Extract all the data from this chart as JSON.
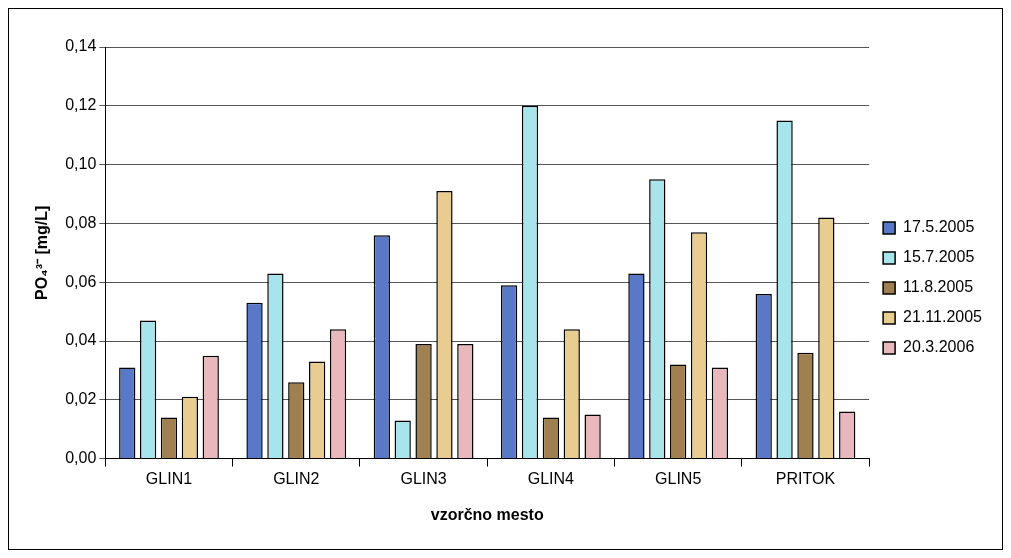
{
  "chart_data": {
    "type": "bar",
    "xlabel": "vzorčno mesto",
    "ylabel": "PO₄³⁻ [mg/L]",
    "categories": [
      "GLIN1",
      "GLIN2",
      "GLIN3",
      "GLIN4",
      "GLIN5",
      "PRITOK"
    ],
    "series": [
      {
        "name": "17.5.2005",
        "color": "#5a78c8",
        "values": [
          0.031,
          0.053,
          0.076,
          0.059,
          0.063,
          0.056
        ]
      },
      {
        "name": "15.7.2005",
        "color": "#a8e4ec",
        "values": [
          0.047,
          0.063,
          0.013,
          0.12,
          0.095,
          0.115
        ]
      },
      {
        "name": "11.8.2005",
        "color": "#a08050",
        "values": [
          0.014,
          0.026,
          0.039,
          0.014,
          0.032,
          0.036
        ]
      },
      {
        "name": "21.11.2005",
        "color": "#e8cc90",
        "values": [
          0.021,
          0.033,
          0.091,
          0.044,
          0.077,
          0.082
        ]
      },
      {
        "name": "20.3.2006",
        "color": "#e8b8bc",
        "values": [
          0.035,
          0.044,
          0.039,
          0.015,
          0.031,
          0.016
        ]
      }
    ],
    "ylim": [
      0,
      0.14
    ],
    "yticks": [
      {
        "value": 0,
        "label": "0,00"
      },
      {
        "value": 0.02,
        "label": "0,02"
      },
      {
        "value": 0.04,
        "label": "0,04"
      },
      {
        "value": 0.06,
        "label": "0,06"
      },
      {
        "value": 0.08,
        "label": "0,08"
      },
      {
        "value": 0.1,
        "label": "0,10"
      },
      {
        "value": 0.12,
        "label": "0,12"
      },
      {
        "value": 0.14,
        "label": "0,14"
      }
    ],
    "grid": "y",
    "legend": "right"
  }
}
